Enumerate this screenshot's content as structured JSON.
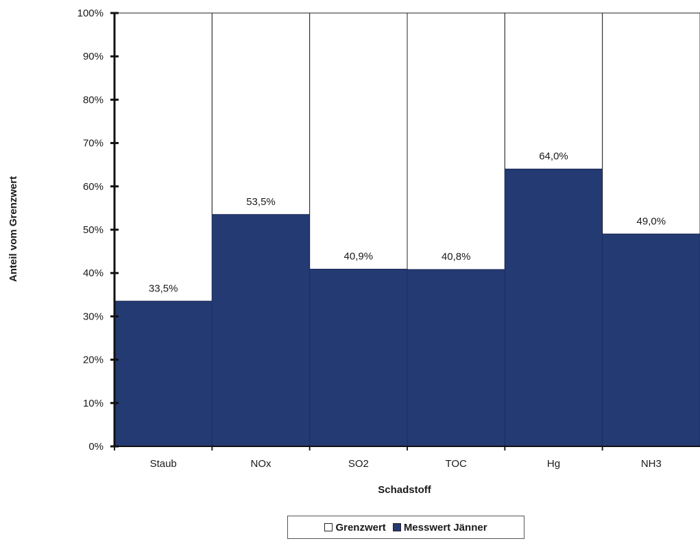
{
  "chart_data": {
    "type": "bar",
    "stacked": true,
    "xlabel": "Schadstoff",
    "ylabel": "Anteil vom Grenzwert",
    "ylim": [
      0,
      100
    ],
    "yticks": [
      "0%",
      "10%",
      "20%",
      "30%",
      "40%",
      "50%",
      "60%",
      "70%",
      "80%",
      "90%",
      "100%"
    ],
    "categories": [
      "Staub",
      "NOx",
      "SO2",
      "TOC",
      "Hg",
      "NH3"
    ],
    "series": [
      {
        "name": "Messwert Jänner",
        "values": [
          33.5,
          53.5,
          40.9,
          40.8,
          64.0,
          49.0
        ],
        "labels": [
          "33,5%",
          "53,5%",
          "40,9%",
          "40,8%",
          "64,0%",
          "49,0%"
        ],
        "color": "#243a73"
      },
      {
        "name": "Grenzwert",
        "values": [
          66.5,
          46.5,
          59.1,
          59.2,
          36.0,
          51.0
        ],
        "color": "#ffffff"
      }
    ],
    "legend": {
      "position": "bottom",
      "items": [
        "Grenzwert",
        "Messwert Jänner"
      ]
    },
    "grid": false
  }
}
